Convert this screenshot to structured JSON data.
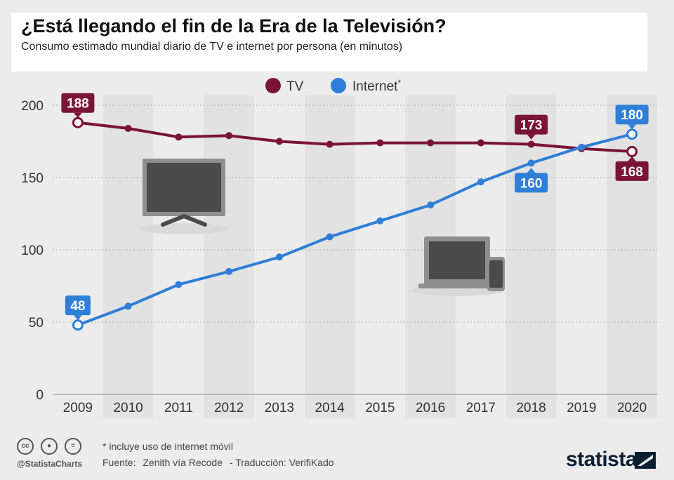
{
  "header": {
    "title": "¿Está llegando el fin de la Era de la Televisión?",
    "subtitle": "Consumo estimado mundial diario de TV e internet por persona (en minutos)"
  },
  "legend": {
    "tv": "TV",
    "internet": "Internet",
    "internet_mark": "*"
  },
  "chart_data": {
    "type": "line",
    "x": [
      2009,
      2010,
      2011,
      2012,
      2013,
      2014,
      2015,
      2016,
      2017,
      2018,
      2019,
      2020
    ],
    "series": [
      {
        "name": "TV",
        "color": "#7a1437",
        "values": [
          188,
          184,
          178,
          179,
          175,
          173,
          174,
          174,
          174,
          173,
          170,
          168
        ]
      },
      {
        "name": "Internet",
        "color": "#2f7ed8",
        "values": [
          48,
          61,
          76,
          85,
          95,
          109,
          120,
          131,
          147,
          160,
          171,
          180
        ]
      }
    ],
    "ylim": [
      0,
      200
    ],
    "yticks": [
      0,
      50,
      100,
      150,
      200
    ],
    "grid": true,
    "legend_position": "top-center",
    "labels": [
      {
        "series": "TV",
        "year": 2009,
        "text": "188",
        "placement": "above"
      },
      {
        "series": "TV",
        "year": 2018,
        "text": "173",
        "placement": "above"
      },
      {
        "series": "TV",
        "year": 2020,
        "text": "168",
        "placement": "below"
      },
      {
        "series": "Internet",
        "year": 2009,
        "text": "48",
        "placement": "above"
      },
      {
        "series": "Internet",
        "year": 2018,
        "text": "160",
        "placement": "below"
      },
      {
        "series": "Internet",
        "year": 2020,
        "text": "180",
        "placement": "above"
      }
    ],
    "xlabel": "",
    "ylabel": ""
  },
  "footer": {
    "note": "* incluye uso de internet móvil",
    "source_label": "Fuente:",
    "source_value": "Zenith vía Recode",
    "translation": "- Traducción: VerifiKado",
    "handle": "@StatistaCharts",
    "brand": "statista",
    "cc_icons": [
      "cc-icon",
      "by-icon",
      "nd-icon"
    ]
  },
  "colors": {
    "tv": "#7a1437",
    "internet": "#2f7ed8",
    "band": "#e2e2e2",
    "background": "#ececec"
  }
}
